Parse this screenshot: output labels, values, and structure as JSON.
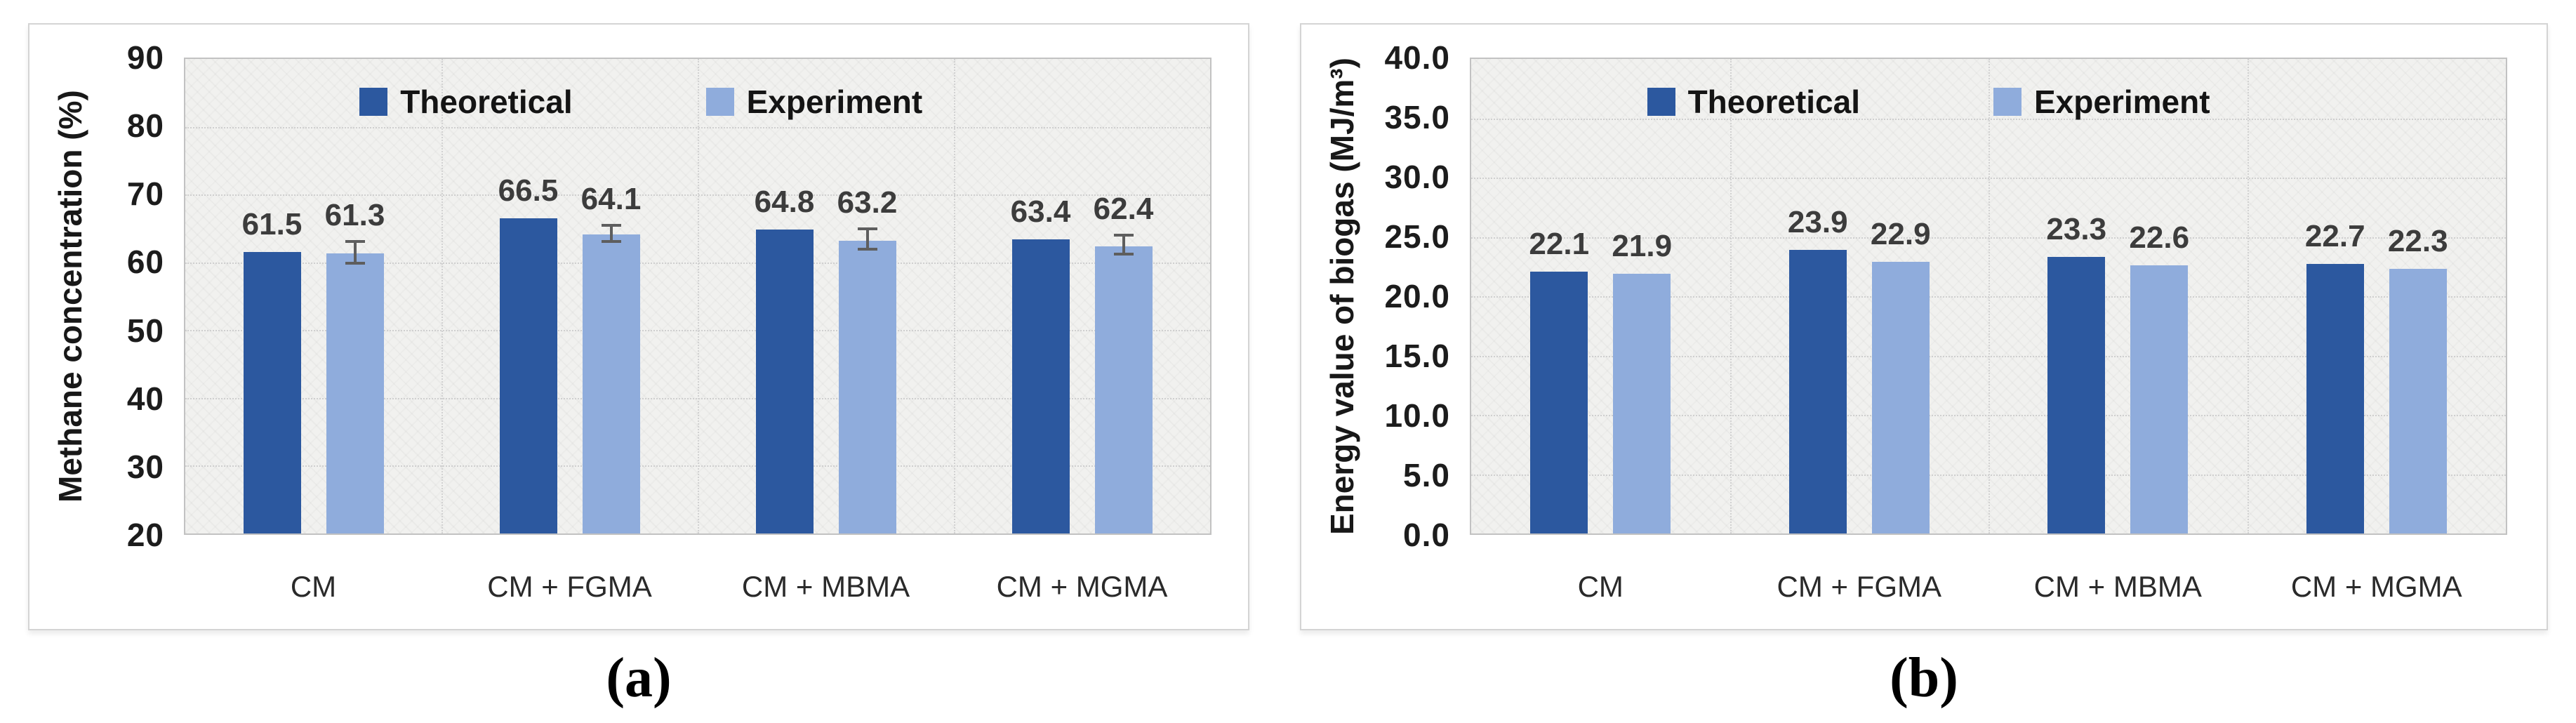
{
  "colors": {
    "theoretical": "#2C589F",
    "experiment": "#8FACDC",
    "plot_background": "#F1F1EF",
    "gridline": "#CFCFCF",
    "plot_border": "#C2C2C2",
    "panel_border": "#D4D4D4",
    "error_bar": "#5E5E5E",
    "data_label": "#3C3C3C"
  },
  "legend": {
    "items": [
      {
        "label": "Theoretical",
        "color_key": "theoretical"
      },
      {
        "label": "Experiment",
        "color_key": "experiment"
      }
    ],
    "position": "inside-top-left"
  },
  "chart_data": [
    {
      "id": "a",
      "type": "bar",
      "title": "",
      "xlabel": "",
      "ylabel": "Methane concentration (%)",
      "categories": [
        "CM",
        "CM + FGMA",
        "CM + MBMA",
        "CM + MGMA"
      ],
      "series": [
        {
          "name": "Theoretical",
          "values": [
            61.5,
            66.5,
            64.8,
            63.4
          ]
        },
        {
          "name": "Experiment",
          "values": [
            61.3,
            64.1,
            63.2,
            62.4
          ],
          "errors": [
            1.6,
            1.2,
            1.5,
            1.4
          ]
        }
      ],
      "data_labels": [
        [
          "61.5",
          "66.5",
          "64.8",
          "63.4"
        ],
        [
          "61.3",
          "64.1",
          "63.2",
          "62.4"
        ]
      ],
      "ylim": [
        20,
        90
      ],
      "ytick_labels": [
        "90",
        "80",
        "70",
        "60",
        "50",
        "40",
        "30",
        "20"
      ],
      "grid": true,
      "legend_position": "inside-top-left",
      "caption": "(a)"
    },
    {
      "id": "b",
      "type": "bar",
      "title": "",
      "xlabel": "",
      "ylabel": "Energy value of biogas (MJ/m³)",
      "categories": [
        "CM",
        "CM + FGMA",
        "CM + MBMA",
        "CM + MGMA"
      ],
      "series": [
        {
          "name": "Theoretical",
          "values": [
            22.1,
            23.9,
            23.3,
            22.7
          ]
        },
        {
          "name": "Experiment",
          "values": [
            21.9,
            22.9,
            22.6,
            22.3
          ]
        }
      ],
      "data_labels": [
        [
          "22.1",
          "23.9",
          "23.3",
          "22.7"
        ],
        [
          "21.9",
          "22.9",
          "22.6",
          "22.3"
        ]
      ],
      "ylim": [
        0,
        40
      ],
      "ytick_labels": [
        "40.0",
        "35.0",
        "30.0",
        "25.0",
        "20.0",
        "15.0",
        "10.0",
        "5.0",
        "0.0"
      ],
      "grid": true,
      "legend_position": "inside-top-left",
      "caption": "(b)"
    }
  ]
}
